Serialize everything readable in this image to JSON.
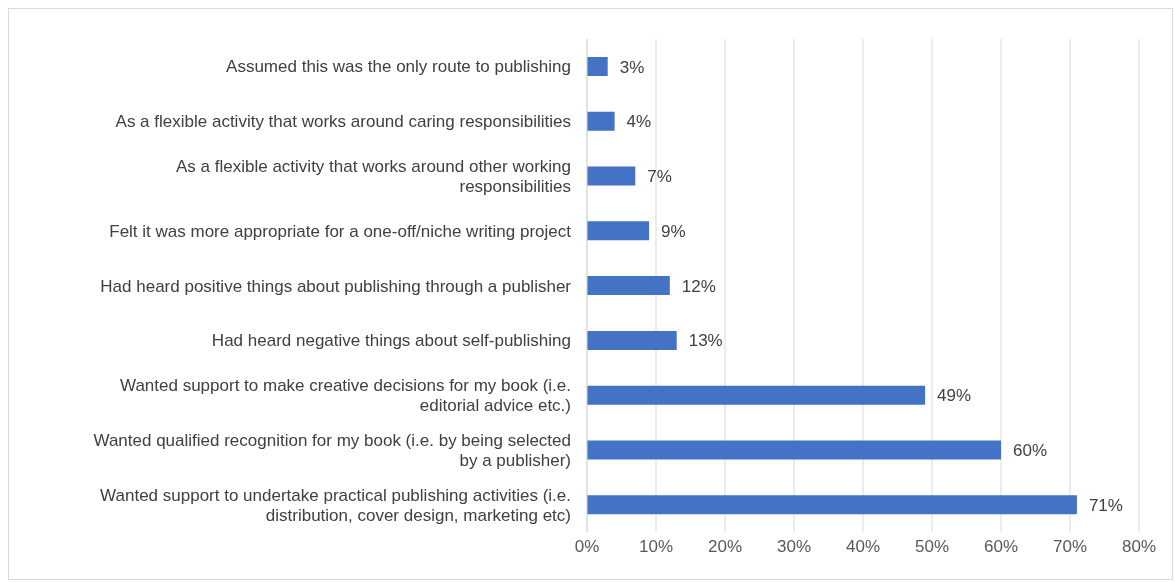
{
  "chart_data": {
    "type": "bar",
    "orientation": "horizontal",
    "categories": [
      "Assumed this was the only route to publishing",
      "As a flexible activity that works around caring responsibilities",
      "As a flexible activity that works around other working responsibilities",
      "Felt it was more appropriate for a one-off/niche writing project",
      "Had heard positive things about publishing through a publisher",
      "Had heard negative things about self-publishing",
      "Wanted support to make creative decisions for my book (i.e. editorial advice etc.)",
      "Wanted qualified recognition for my book (i.e. by being selected by a publisher)",
      "Wanted support to undertake practical publishing activities (i.e. distribution, cover design, marketing etc)"
    ],
    "values": [
      3,
      4,
      7,
      9,
      12,
      13,
      49,
      60,
      71
    ],
    "value_labels": [
      "3%",
      "4%",
      "7%",
      "9%",
      "12%",
      "13%",
      "49%",
      "60%",
      "71%"
    ],
    "color": "#4472c4",
    "xlim": [
      0,
      80
    ],
    "xticks": [
      {
        "value": 0,
        "label": "0%"
      },
      {
        "value": 10,
        "label": "10%"
      },
      {
        "value": 20,
        "label": "20%"
      },
      {
        "value": 30,
        "label": "30%"
      },
      {
        "value": 40,
        "label": "40%"
      },
      {
        "value": 50,
        "label": "50%"
      },
      {
        "value": 60,
        "label": "60%"
      },
      {
        "value": 70,
        "label": "70%"
      },
      {
        "value": 80,
        "label": "80%"
      }
    ],
    "grid": "x",
    "legend": false
  }
}
